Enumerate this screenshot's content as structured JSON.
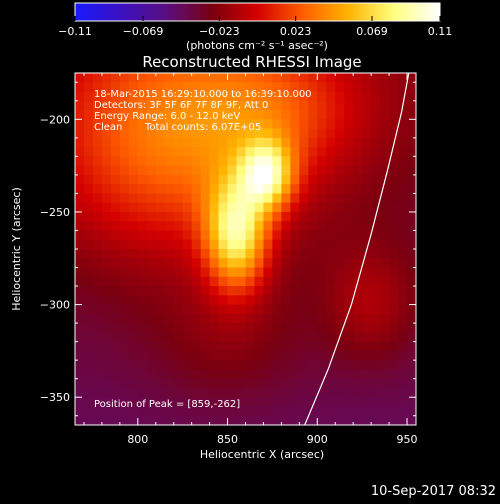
{
  "chart_data": {
    "type": "heatmap",
    "title": "Reconstructed RHESSI Image",
    "xlabel": "Heliocentric X (arcsec)",
    "ylabel": "Heliocentric Y (arcsec)",
    "xlim": [
      765,
      955
    ],
    "ylim": [
      -365,
      -175
    ],
    "x_ticks": [
      "800",
      "850",
      "900",
      "950"
    ],
    "y_ticks": [
      "-200",
      "-250",
      "-300",
      "-350"
    ],
    "colorbar": {
      "unit_label": "(photons cm⁻² s⁻¹ asec⁻²)",
      "range": [
        -0.11,
        0.11
      ],
      "tick_labels": [
        "-0.11",
        "-0.069",
        "-0.023",
        "0.023",
        "0.069",
        "0.11"
      ],
      "colormap": [
        "#1a1aff",
        "#3a10c0",
        "#5a0e80",
        "#7a0010",
        "#d40000",
        "#ff5e00",
        "#ffb400",
        "#ffff80",
        "#ffffff"
      ]
    },
    "annotations": {
      "line1": "18-Mar-2015 16:29:10.000 to 16:39:10.000",
      "line2": "Detectors: 3F 5F 6F 7F 8F 9F, Att 0",
      "line3": "Energy Range: 6.0 - 12.0 keV",
      "line4_a": "Clean",
      "line4_b": "Total counts: 6.07E+05",
      "peak": "Position of Peak = [859,-262]"
    },
    "peak_position": [
      859,
      -262
    ],
    "limb_curve": [
      [
        893,
        -365
      ],
      [
        906,
        -335
      ],
      [
        919,
        -300
      ],
      [
        930,
        -262
      ],
      [
        939,
        -228
      ],
      [
        947,
        -196
      ],
      [
        951,
        -175
      ]
    ],
    "sources": [
      {
        "x": 855,
        "y": -262,
        "sx": 12,
        "sy": 21,
        "amp": 0.1
      },
      {
        "x": 872,
        "y": -230,
        "sx": 10,
        "sy": 13,
        "amp": 0.09
      },
      {
        "x": 820,
        "y": -210,
        "sx": 50,
        "sy": 45,
        "amp": 0.065
      },
      {
        "x": 880,
        "y": -195,
        "sx": 35,
        "sy": 25,
        "amp": 0.03
      },
      {
        "x": 930,
        "y": -300,
        "sx": 18,
        "sy": 22,
        "amp": 0.025
      },
      {
        "x": 850,
        "y": -320,
        "sx": 30,
        "sy": 25,
        "amp": 0.015
      }
    ],
    "footer_timestamp": "10-Sep-2017 08:32"
  }
}
